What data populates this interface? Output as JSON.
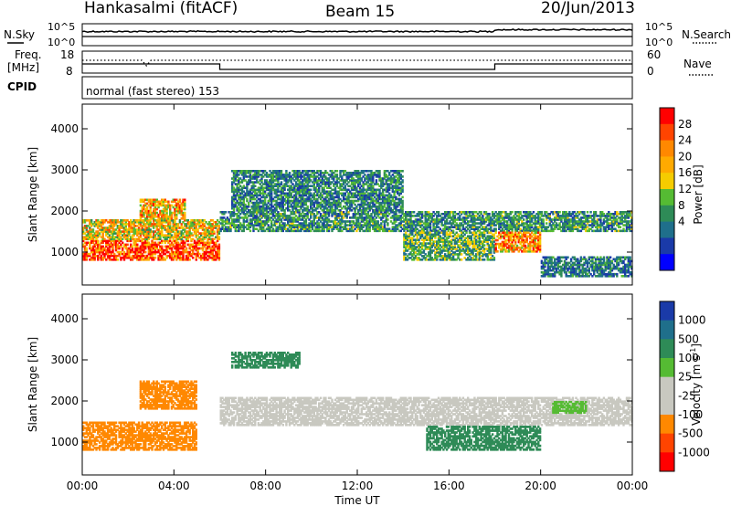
{
  "header": {
    "station": "Hankasalmi (fitACF)",
    "beam": "Beam 15",
    "date": "20/Jun/2013"
  },
  "status_panel": {
    "nsky_label": "N.Sky",
    "nsky_ticks": [
      "10^5",
      "10^0"
    ],
    "nsearch_label": "N.Search",
    "nsearch_ticks": [
      "10^5",
      "10^0"
    ],
    "freq_label_1": "Freq.",
    "freq_label_2": "[MHz]",
    "freq_ticks": [
      "18",
      "8"
    ],
    "nave_label": "Nave",
    "nave_ticks": [
      "60",
      "0"
    ],
    "cpid_label": "CPID",
    "cpid_text": "normal (fast stereo) 153",
    "cpid_switch_hours": [
      6.0,
      18.0
    ]
  },
  "chart_data": [
    {
      "type": "heatmap",
      "name": "power",
      "ylabel": "Slant Range [km]",
      "xlabel": "",
      "xlim_hours": [
        0,
        24
      ],
      "ylim": [
        200,
        4600
      ],
      "y_ticks": [
        "4000",
        "3000",
        "2000",
        "1000"
      ],
      "y_tick_values": [
        4000,
        3000,
        2000,
        1000
      ],
      "colorbar": {
        "label": "Power [dB]",
        "ticks": [
          "28",
          "24",
          "20",
          "16",
          "12",
          "8",
          "4"
        ],
        "colors": [
          "#ff0000",
          "#ff4400",
          "#ff8800",
          "#ffaa00",
          "#f5cc00",
          "#55bb33",
          "#2e8b57",
          "#1f6f8b",
          "#1a3aa8",
          "#0000ff"
        ]
      },
      "echo_regions": [
        {
          "t0": 0.0,
          "t1": 6.0,
          "r0": 800,
          "r1": 1300,
          "level": 26
        },
        {
          "t0": 0.0,
          "t1": 6.0,
          "r0": 1300,
          "r1": 1800,
          "level": 18
        },
        {
          "t0": 2.5,
          "t1": 4.5,
          "r0": 1800,
          "r1": 2300,
          "level": 20
        },
        {
          "t0": 6.0,
          "t1": 24.0,
          "r0": 1500,
          "r1": 2000,
          "level": 10
        },
        {
          "t0": 6.5,
          "t1": 14.0,
          "r0": 2000,
          "r1": 3000,
          "level": 9
        },
        {
          "t0": 14.0,
          "t1": 18.0,
          "r0": 800,
          "r1": 1500,
          "level": 12
        },
        {
          "t0": 18.0,
          "t1": 20.0,
          "r0": 1000,
          "r1": 1500,
          "level": 22
        },
        {
          "t0": 20.0,
          "t1": 24.0,
          "r0": 400,
          "r1": 900,
          "level": 8
        }
      ]
    },
    {
      "type": "heatmap",
      "name": "velocity",
      "ylabel": "Slant Range [km]",
      "xlabel": "Time UT",
      "xlim_hours": [
        0,
        24
      ],
      "ylim": [
        200,
        4600
      ],
      "x_ticks": [
        "00:00",
        "04:00",
        "08:00",
        "12:00",
        "16:00",
        "20:00",
        "00:00"
      ],
      "x_tick_hours": [
        0,
        4,
        8,
        12,
        16,
        20,
        24
      ],
      "y_ticks": [
        "4000",
        "3000",
        "2000",
        "1000"
      ],
      "y_tick_values": [
        4000,
        3000,
        2000,
        1000
      ],
      "colorbar": {
        "label": "Velocity [m s",
        "label_sup": "-1",
        "label_end": "]",
        "ticks": [
          "1000",
          "500",
          "100",
          "25",
          "-25",
          "-100",
          "-500",
          "-1000"
        ],
        "colors": [
          "#1a3aa8",
          "#1f6f8b",
          "#2e8b57",
          "#55bb33",
          "#c8c8c0",
          "#c8c8c0",
          "#ff8800",
          "#ff4400",
          "#ff0000"
        ]
      },
      "echo_regions": [
        {
          "t0": 0.0,
          "t1": 5.0,
          "r0": 800,
          "r1": 1500,
          "level": -300
        },
        {
          "t0": 2.5,
          "t1": 5.0,
          "r0": 1800,
          "r1": 2500,
          "level": -300
        },
        {
          "t0": 6.5,
          "t1": 9.5,
          "r0": 2800,
          "r1": 3200,
          "level": 200
        },
        {
          "t0": 6.0,
          "t1": 24.0,
          "r0": 1400,
          "r1": 2100,
          "level": 0
        },
        {
          "t0": 15.0,
          "t1": 20.0,
          "r0": 800,
          "r1": 1400,
          "level": 200
        },
        {
          "t0": 20.5,
          "t1": 22.0,
          "r0": 1700,
          "r1": 2000,
          "level": 60
        }
      ]
    }
  ]
}
